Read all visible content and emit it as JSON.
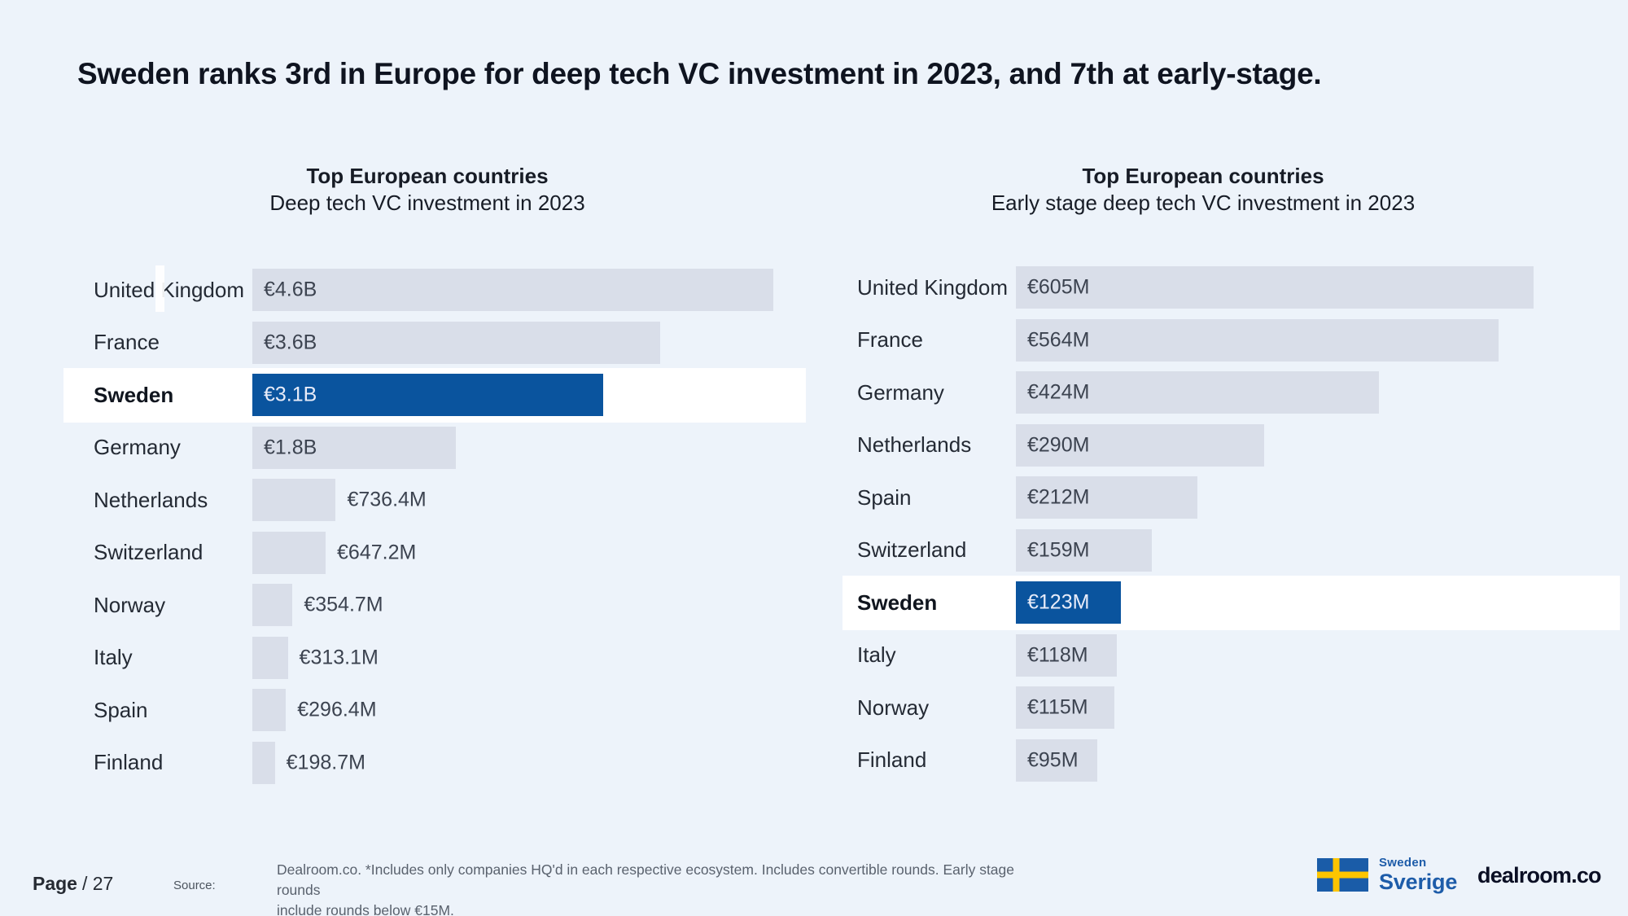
{
  "page": {
    "title": "Sweden ranks 3rd in Europe for deep tech VC investment in 2023, and 7th at early-stage.",
    "background_color": "#edf3fa",
    "bar_color": "#d9dee9",
    "accent_color": "#0a549e",
    "highlight_row_color": "#ffffff"
  },
  "chart_data": [
    {
      "type": "bar",
      "orientation": "horizontal",
      "title": "Top European countries",
      "subtitle": "Deep tech VC investment in 2023",
      "unit": "EUR",
      "categories": [
        "United Kingdom",
        "France",
        "Sweden",
        "Germany",
        "Netherlands",
        "Switzerland",
        "Norway",
        "Italy",
        "Spain",
        "Finland"
      ],
      "values_eur_m": [
        4600,
        3600,
        3100,
        1800,
        736.4,
        647.2,
        354.7,
        313.1,
        296.4,
        198.7
      ],
      "value_labels": [
        "€4.6B",
        "€3.6B",
        "€3.1B",
        "€1.8B",
        "€736.4M",
        "€647.2M",
        "€354.7M",
        "€313.1M",
        "€296.4M",
        "€198.7M"
      ],
      "label_inside": [
        true,
        true,
        true,
        true,
        false,
        false,
        false,
        false,
        false,
        false
      ],
      "highlight_index": 2,
      "highlight_country": "Sweden",
      "xlim_eur_m": [
        0,
        4600
      ],
      "grid": false,
      "legend": false
    },
    {
      "type": "bar",
      "orientation": "horizontal",
      "title": "Top European countries",
      "subtitle": "Early stage deep tech VC investment in 2023",
      "unit": "EUR",
      "categories": [
        "United Kingdom",
        "France",
        "Germany",
        "Netherlands",
        "Spain",
        "Switzerland",
        "Sweden",
        "Italy",
        "Norway",
        "Finland"
      ],
      "values_eur_m": [
        605,
        564,
        424,
        290,
        212,
        159,
        123,
        118,
        115,
        95
      ],
      "value_labels": [
        "€605M",
        "€564M",
        "€424M",
        "€290M",
        "€212M",
        "€159M",
        "€123M",
        "€118M",
        "€115M",
        "€95M"
      ],
      "label_inside": [
        true,
        true,
        true,
        true,
        true,
        true,
        true,
        true,
        true,
        true
      ],
      "highlight_index": 6,
      "highlight_country": "Sweden",
      "xlim_eur_m": [
        0,
        605
      ],
      "grid": false,
      "legend": false
    }
  ],
  "footer": {
    "page_label": "Page",
    "page_number": "/ 27",
    "source_label": "Source:",
    "source_line1": "Dealroom.co.  *Includes only companies HQ'd in each respective ecosystem. Includes convertible rounds. Early stage rounds",
    "source_line2": "include rounds below €15M.",
    "sweden_logo": {
      "line1": "Sweden",
      "line2": "Sverige",
      "flag_blue": "#1a5ca8",
      "flag_yellow": "#fdc500"
    },
    "dealroom_wordmark": "dealroom.co"
  }
}
